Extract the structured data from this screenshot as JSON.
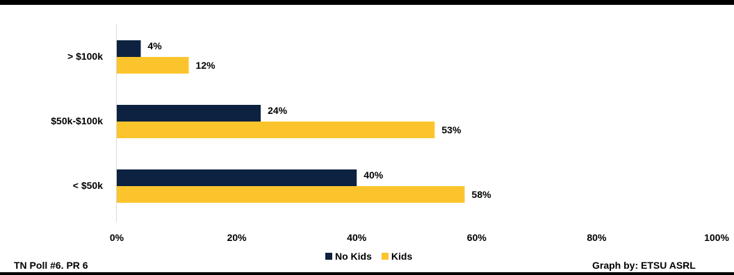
{
  "colors": {
    "no_kids": "#0d2240",
    "kids": "#fcc42c",
    "axis": "#d9d9d9",
    "text": "#000000"
  },
  "chart_data": {
    "type": "bar",
    "orientation": "horizontal",
    "categories": [
      "> $100k",
      "$50k-$100k",
      "< $50k"
    ],
    "series": [
      {
        "name": "No Kids",
        "values": [
          4,
          24,
          40
        ],
        "labels": [
          "4%",
          "24%",
          "40%"
        ]
      },
      {
        "name": "Kids",
        "values": [
          12,
          53,
          58
        ],
        "labels": [
          "12%",
          "53%",
          "58%"
        ]
      }
    ],
    "xlim": [
      0,
      100
    ],
    "xticks": [
      "0%",
      "20%",
      "40%",
      "60%",
      "80%",
      "100%"
    ],
    "grid": false,
    "legend_position": "bottom"
  },
  "footer": {
    "left": "TN Poll #6. PR 6",
    "right": "Graph by: ETSU ASRL"
  }
}
